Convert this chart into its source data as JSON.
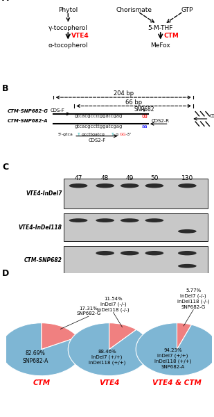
{
  "panel_A": {
    "left_pathway": [
      "Phytol",
      "γ-tocopherol",
      "α-tocopherol"
    ],
    "left_enzyme": "VTE4",
    "right_pathway_top": [
      "Chorismate",
      "GTP"
    ],
    "right_pathway_mid": "5-M-THF",
    "right_pathway_bot": "MeFox",
    "right_enzyme": "CTM"
  },
  "panel_B": {
    "bp_204": "204 bp",
    "bp_66": "66 bp",
    "snp682": "SNP682",
    "seq_G": "gtcacgccttggatcgag",
    "seq_G_end": "gg",
    "seq_A": "gtcacgccttggatcgag",
    "seq_A_end": "aa",
    "labels": [
      "CTM-SNP682-G",
      "CTM-SNP682-A",
      "CDS-F",
      "CDS2-F",
      "SNP682",
      "CDS2-R",
      "CDS-R"
    ]
  },
  "panel_C": {
    "lane_labels": [
      "47",
      "48",
      "49",
      "50",
      "130"
    ],
    "row_labels": [
      "VTE4-InDel7",
      "VTE4-InDel118",
      "CTM-SNP682"
    ]
  },
  "panel_D": {
    "pie1": {
      "values": [
        17.31,
        82.69
      ],
      "colors": [
        "#F08080",
        "#7EB6D4"
      ],
      "label_small": "17.31%\nSNP682-G",
      "label_large": "82.69%\nSNP682-A",
      "title": "CTM"
    },
    "pie2": {
      "values": [
        11.54,
        88.46
      ],
      "colors": [
        "#F08080",
        "#7EB6D4"
      ],
      "label_small": "11.54%\nInDel7 (-/-)\nInDel118 (-/-)",
      "label_large": "88.46%\nInDel7 (+/+)\nInDel118 (+/+)",
      "title": "VTE4"
    },
    "pie3": {
      "values": [
        5.77,
        94.23
      ],
      "colors": [
        "#F08080",
        "#7EB6D4"
      ],
      "label_small": "5.77%\nInDel7 (-/-)\nInDel118 (-/-)\nSNP682-G",
      "label_large": "94.23%\nInDel7 (+/+)\nInDel118 (+/+)\nSNP682-A",
      "title": "VTE4 & CTM"
    }
  }
}
